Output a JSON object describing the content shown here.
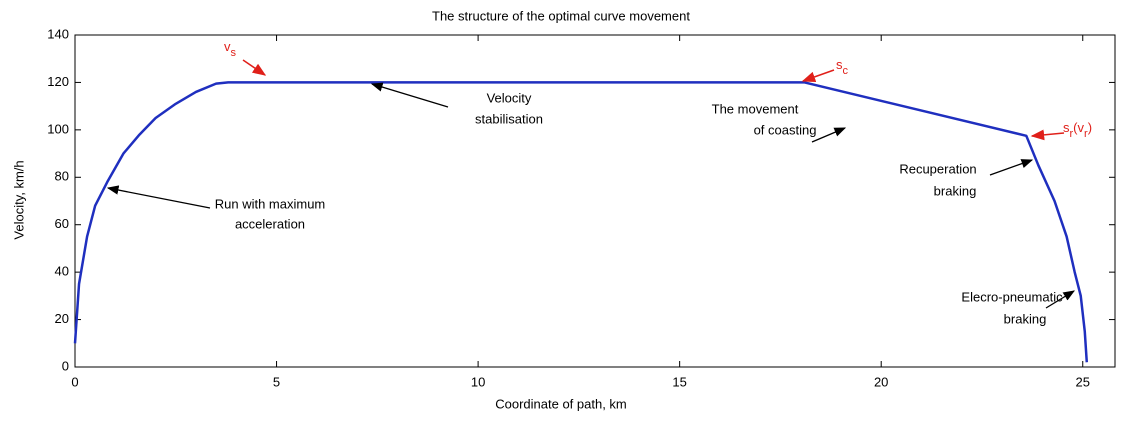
{
  "chart_data": {
    "type": "line",
    "title": "The structure of the optimal curve movement",
    "x_label": "Coordinate of path, km",
    "y_label": "Velocity, km/h",
    "xlim": [
      0,
      25.8
    ],
    "ylim": [
      0,
      140
    ],
    "xticks": [
      0,
      5,
      10,
      15,
      20,
      25
    ],
    "yticks": [
      0,
      20,
      40,
      60,
      80,
      100,
      120,
      140
    ],
    "grid": false,
    "series": [
      {
        "color": "#1f2fbf",
        "x": [
          0,
          0.1,
          0.3,
          0.5,
          0.8,
          1.2,
          1.6,
          2,
          2.5,
          3,
          3.5,
          3.8,
          18.1,
          23.6,
          23.9,
          24.3,
          24.6,
          24.8,
          24.95,
          25.05,
          25.1
        ],
        "values": [
          10,
          35,
          55,
          68,
          78,
          90,
          98,
          105,
          111,
          116,
          119.5,
          120,
          120,
          97.5,
          85,
          70,
          55,
          40,
          30,
          15,
          2
        ]
      }
    ],
    "annotations": [
      {
        "lines": [
          "Run with maximum",
          "acceleration"
        ]
      },
      {
        "lines": [
          "Velocity",
          "stabilisation"
        ]
      },
      {
        "lines": [
          "The movement",
          "of coasting"
        ]
      },
      {
        "lines": [
          "Recuperation",
          "braking"
        ]
      },
      {
        "lines": [
          "Elecro-pneumatic",
          "braking"
        ]
      }
    ],
    "markers": [
      {
        "parts": [
          {
            "text": "v"
          },
          {
            "sub": "s"
          }
        ]
      },
      {
        "parts": [
          {
            "text": "s"
          },
          {
            "sub": "c"
          }
        ]
      },
      {
        "parts": [
          {
            "text": "s"
          },
          {
            "sub": "r"
          },
          {
            "text": "(v"
          },
          {
            "sub": "r"
          },
          {
            "text": ")"
          }
        ]
      }
    ]
  }
}
